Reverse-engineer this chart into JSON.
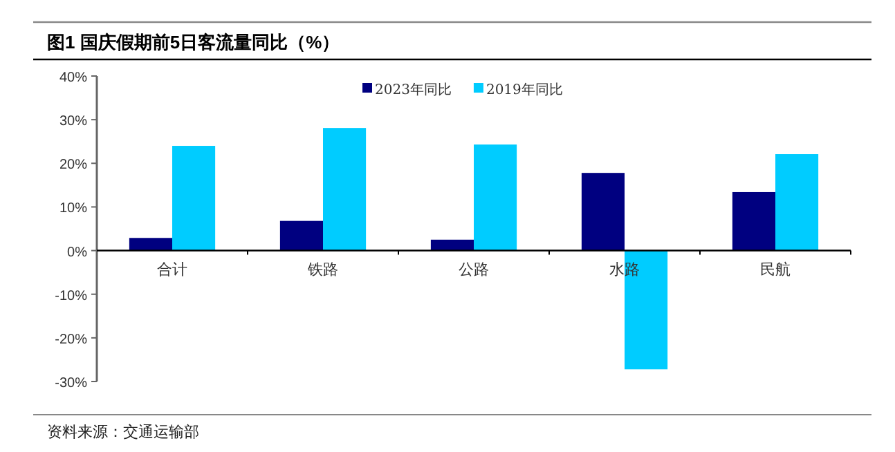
{
  "chart_data": {
    "type": "bar",
    "title": "图1  国庆假期前5日客流量同比（%）",
    "annotations": [
      "资料来源：交通运输部"
    ],
    "categories": [
      "合计",
      "铁路",
      "公路",
      "水路",
      "民航"
    ],
    "series": [
      {
        "name": "2023年同比",
        "color": "#000080",
        "values": [
          2.9,
          6.8,
          2.5,
          17.8,
          13.4
        ]
      },
      {
        "name": "2019年同比",
        "color": "#00ccff",
        "values": [
          24.0,
          28.1,
          24.3,
          -27.2,
          22.1
        ]
      }
    ],
    "ylim": [
      -30,
      40
    ],
    "yticks": [
      {
        "value": -30,
        "label": "-30%"
      },
      {
        "value": -20,
        "label": "-20%"
      },
      {
        "value": -10,
        "label": "-10%"
      },
      {
        "value": 0,
        "label": "0%"
      },
      {
        "value": 10,
        "label": "10%"
      },
      {
        "value": 20,
        "label": "20%"
      },
      {
        "value": 30,
        "label": "30%"
      },
      {
        "value": 40,
        "label": "40%"
      }
    ],
    "legend": "top"
  }
}
